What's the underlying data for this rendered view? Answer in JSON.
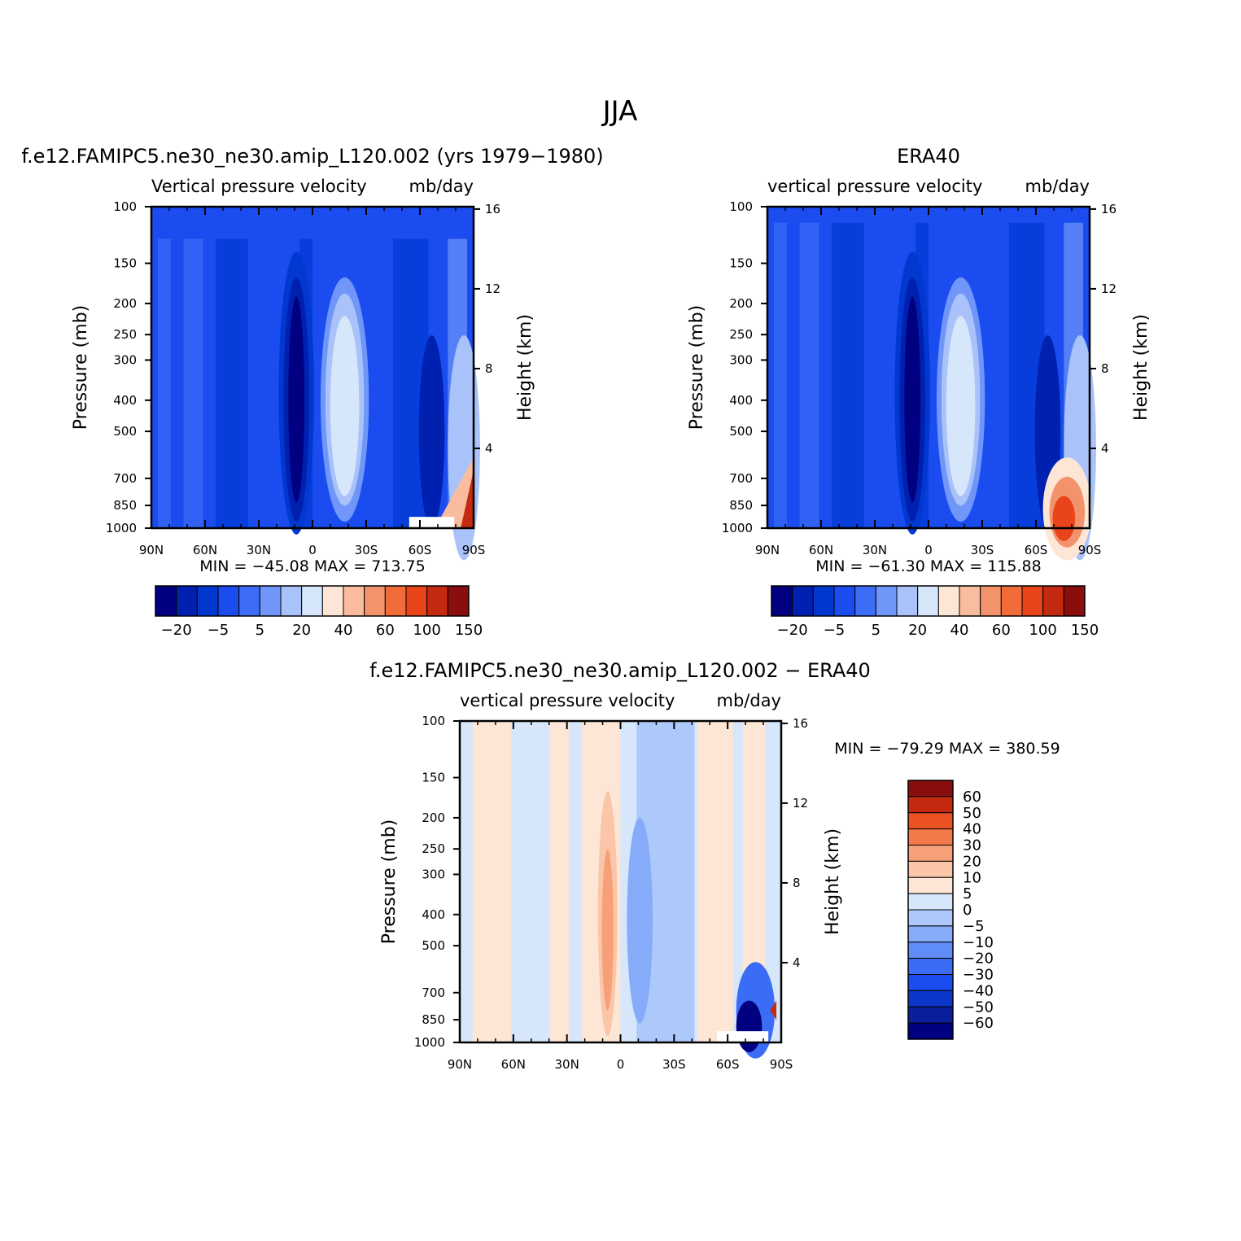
{
  "figure": {
    "title": "JJA"
  },
  "colors": {
    "main_scale": [
      "#000080",
      "#0020b0",
      "#0038d0",
      "#1a4cf0",
      "#3d6cf6",
      "#6f96f8",
      "#a9c2f9",
      "#d6e6fb",
      "#fde6d6",
      "#f9bc9e",
      "#f3936b",
      "#f26c3a",
      "#e9441a",
      "#c42a10",
      "#8b0e0e"
    ],
    "diff_scale": [
      "#000080",
      "#0a1f9c",
      "#0d37c8",
      "#1a4cf0",
      "#3a6cf5",
      "#5f8cf7",
      "#86abf8",
      "#adc8fa",
      "#d6e6fb",
      "#fde6d6",
      "#fbc5a8",
      "#f6a07a",
      "#f27a4a",
      "#ea5224",
      "#c42a10",
      "#8b0e0e"
    ]
  },
  "chart_data": [
    {
      "type": "heatmap",
      "title": "f.e12.FAMIPC5.ne30_ne30.amip_L120.002 (yrs 1979-1980)",
      "subtitle_left": "Vertical pressure velocity",
      "subtitle_right": "mb/day",
      "ylabel": "Pressure (mb)",
      "y2label": "Height (km)",
      "x_ticks": [
        "90N",
        "60N",
        "30N",
        "0",
        "30S",
        "60S",
        "90S"
      ],
      "y_ticks": [
        100,
        150,
        200,
        250,
        300,
        400,
        500,
        700,
        850,
        1000
      ],
      "y2_ticks": [
        16,
        12,
        8,
        4
      ],
      "min_max": "MIN = -45.08   MAX = 713.75",
      "colorbar_labels": [
        "-20",
        "-5",
        "5",
        "20",
        "40",
        "60",
        "100",
        "150"
      ]
    },
    {
      "type": "heatmap",
      "title": "ERA40",
      "subtitle_left": "vertical pressure velocity",
      "subtitle_right": "mb/day",
      "ylabel": "Pressure (mb)",
      "y2label": "Height (km)",
      "x_ticks": [
        "90N",
        "60N",
        "30N",
        "0",
        "30S",
        "60S",
        "90S"
      ],
      "y_ticks": [
        100,
        150,
        200,
        250,
        300,
        400,
        500,
        700,
        850,
        1000
      ],
      "y2_ticks": [
        16,
        12,
        8,
        4
      ],
      "min_max": "MIN = -61.30   MAX = 115.88",
      "colorbar_labels": [
        "-20",
        "-5",
        "5",
        "20",
        "40",
        "60",
        "100",
        "150"
      ]
    },
    {
      "type": "heatmap",
      "title": "f.e12.FAMIPC5.ne30_ne30.amip_L120.002 - ERA40",
      "subtitle_left": "vertical pressure velocity",
      "subtitle_right": "mb/day",
      "ylabel": "Pressure (mb)",
      "y2label": "Height (km)",
      "x_ticks": [
        "90N",
        "60N",
        "30N",
        "0",
        "30S",
        "60S",
        "90S"
      ],
      "y_ticks": [
        100,
        150,
        200,
        250,
        300,
        400,
        500,
        700,
        850,
        1000
      ],
      "y2_ticks": [
        16,
        12,
        8,
        4
      ],
      "min_max": "MIN = -79.29   MAX = 380.59",
      "colorbar_labels": [
        "60",
        "50",
        "40",
        "30",
        "20",
        "10",
        "5",
        "0",
        "-5",
        "-10",
        "-20",
        "-30",
        "-40",
        "-50",
        "-60"
      ]
    }
  ]
}
